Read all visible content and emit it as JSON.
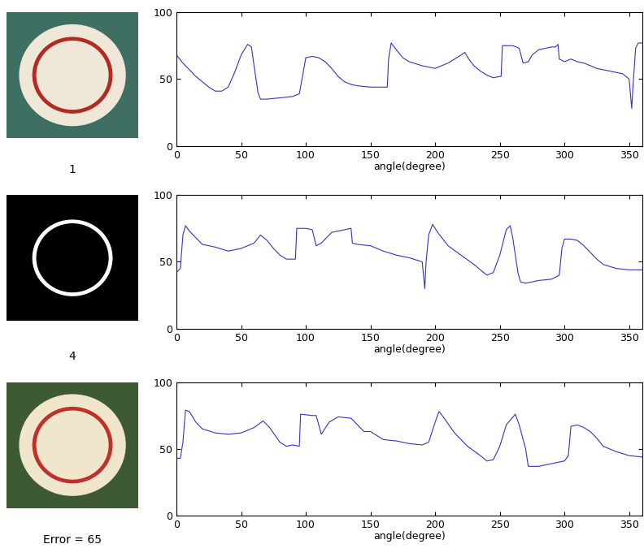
{
  "chart_data": [
    {
      "type": "line",
      "annotation": "1",
      "xlabel": "angle(degree)",
      "color": "#3333cc",
      "xlim": [
        0,
        360
      ],
      "ylim": [
        0,
        100
      ],
      "xticks": [
        0,
        50,
        100,
        150,
        200,
        250,
        300,
        350
      ],
      "yticks": [
        0,
        50,
        100
      ],
      "x": [
        0,
        5,
        10,
        15,
        20,
        25,
        30,
        35,
        40,
        45,
        50,
        55,
        58,
        60,
        63,
        65,
        70,
        80,
        90,
        95,
        98,
        100,
        105,
        110,
        115,
        120,
        125,
        130,
        135,
        140,
        150,
        160,
        163,
        164,
        166,
        170,
        175,
        180,
        190,
        200,
        205,
        210,
        215,
        220,
        223,
        226,
        230,
        235,
        240,
        245,
        250,
        251,
        252,
        260,
        263,
        265,
        268,
        272,
        275,
        280,
        285,
        290,
        293,
        295,
        296,
        300,
        305,
        310,
        315,
        320,
        325,
        330,
        335,
        340,
        345,
        350,
        352,
        353,
        355,
        357,
        360
      ],
      "values": [
        68,
        62,
        57,
        52,
        48,
        44,
        41,
        41,
        44,
        55,
        68,
        76,
        74,
        60,
        40,
        35,
        35,
        36,
        37,
        39,
        55,
        66,
        67,
        66,
        63,
        58,
        52,
        48,
        46,
        45,
        44,
        44,
        44,
        65,
        77,
        72,
        66,
        63,
        60,
        58,
        60,
        62,
        65,
        68,
        70,
        65,
        60,
        56,
        53,
        51,
        52,
        52,
        75,
        75,
        74,
        73,
        62,
        63,
        68,
        72,
        73,
        74,
        74,
        76,
        65,
        63,
        65,
        63,
        62,
        60,
        58,
        57,
        56,
        55,
        54,
        50,
        28,
        45,
        73,
        77,
        77
      ]
    },
    {
      "type": "line",
      "annotation": "4",
      "xlabel": "angle(degree)",
      "color": "#3333cc",
      "xlim": [
        0,
        360
      ],
      "ylim": [
        0,
        100
      ],
      "xticks": [
        0,
        50,
        100,
        150,
        200,
        250,
        300,
        350
      ],
      "yticks": [
        0,
        50,
        100
      ],
      "x": [
        0,
        3,
        5,
        7,
        10,
        15,
        20,
        30,
        40,
        50,
        60,
        65,
        70,
        75,
        80,
        85,
        90,
        92,
        93,
        100,
        105,
        108,
        112,
        120,
        130,
        135,
        136,
        140,
        150,
        160,
        170,
        180,
        190,
        192,
        193,
        195,
        198,
        202,
        210,
        220,
        230,
        235,
        240,
        245,
        250,
        255,
        258,
        260,
        264,
        266,
        270,
        280,
        290,
        296,
        298,
        300,
        305,
        310,
        315,
        320,
        325,
        330,
        340,
        350,
        360
      ],
      "values": [
        42,
        45,
        70,
        77,
        73,
        68,
        63,
        61,
        58,
        60,
        64,
        70,
        66,
        60,
        55,
        52,
        52,
        52,
        75,
        75,
        74,
        62,
        64,
        72,
        74,
        75,
        64,
        63,
        62,
        58,
        55,
        53,
        50,
        30,
        50,
        70,
        78,
        72,
        62,
        55,
        48,
        44,
        40,
        42,
        55,
        74,
        77,
        68,
        42,
        35,
        34,
        36,
        37,
        40,
        60,
        67,
        67,
        66,
        62,
        57,
        52,
        48,
        45,
        44,
        44
      ]
    },
    {
      "type": "line",
      "annotation": "Error = 65",
      "xlabel": "angle(degree)",
      "color": "#3333cc",
      "xlim": [
        0,
        360
      ],
      "ylim": [
        0,
        100
      ],
      "xticks": [
        0,
        50,
        100,
        150,
        200,
        250,
        300,
        350
      ],
      "yticks": [
        0,
        50,
        100
      ],
      "x": [
        0,
        3,
        5,
        7,
        10,
        15,
        20,
        30,
        40,
        50,
        60,
        67,
        72,
        80,
        85,
        90,
        95,
        96,
        105,
        108,
        112,
        118,
        125,
        135,
        140,
        145,
        150,
        160,
        170,
        180,
        190,
        195,
        200,
        203,
        207,
        215,
        225,
        235,
        240,
        245,
        250,
        255,
        262,
        265,
        270,
        272,
        280,
        290,
        300,
        303,
        305,
        310,
        315,
        320,
        325,
        330,
        340,
        350,
        360
      ],
      "values": [
        43,
        43,
        55,
        79,
        78,
        70,
        65,
        62,
        61,
        62,
        66,
        71,
        66,
        55,
        52,
        53,
        52,
        76,
        75,
        75,
        61,
        70,
        74,
        73,
        68,
        63,
        63,
        57,
        56,
        54,
        53,
        55,
        70,
        78,
        73,
        62,
        52,
        45,
        41,
        42,
        52,
        68,
        76,
        68,
        50,
        37,
        37,
        39,
        41,
        45,
        67,
        68,
        66,
        63,
        58,
        52,
        48,
        45,
        44
      ]
    }
  ]
}
